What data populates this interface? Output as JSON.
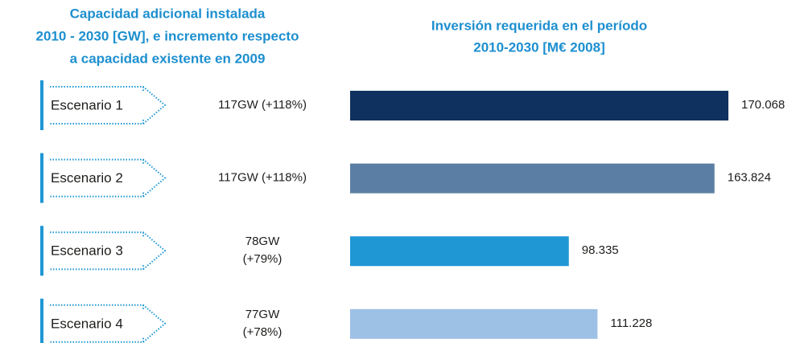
{
  "capacity_title": [
    "Capacidad adicional instalada",
    "2010 - 2030 [GW], e incremento respecto",
    "a capacidad existente en 2009"
  ],
  "capacity": [
    [
      "117GW (+118%)"
    ],
    [
      "117GW (+118%)"
    ],
    [
      "78GW",
      "(+79%)"
    ],
    [
      "77GW",
      "(+78%)"
    ]
  ],
  "chart_data": {
    "type": "bar",
    "orientation": "horizontal",
    "title": [
      "Inversión requerida en el período",
      "2010-2030 [M€ 2008]"
    ],
    "categories": [
      "Escenario 1",
      "Escenario 2",
      "Escenario 3",
      "Escenario 4"
    ],
    "values": [
      170068,
      163824,
      98335,
      111228
    ],
    "value_labels": [
      "170.068",
      "163.824",
      "98.335",
      "111.228"
    ],
    "colors": [
      "#0e3160",
      "#5b7fa4",
      "#1f97d4",
      "#9dc1e5"
    ]
  }
}
